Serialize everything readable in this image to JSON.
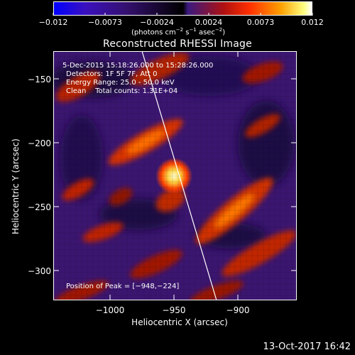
{
  "colorbar": {
    "ticks": [
      "−0.012",
      "−0.0073",
      "−0.0024",
      "0.0024",
      "0.0073",
      "0.012"
    ],
    "units_prefix": "(photons cm",
    "units_exp1": "−2",
    "units_s": " s",
    "units_exp2": "−1",
    "units_asec": " asec",
    "units_exp3": "−2",
    "units_suffix": ")",
    "colors": [
      "#0000ff",
      "#4a00a0",
      "#000000",
      "#5a2090",
      "#ff2000",
      "#ffd000",
      "#ffffff"
    ]
  },
  "plot": {
    "title": "Reconstructed RHESSI Image",
    "x_axis_title": "Heliocentric X (arcsec)",
    "y_axis_title": "Heliocentric Y (arcsec)",
    "x_ticks": [
      "−1000",
      "−950",
      "−900"
    ],
    "y_ticks": [
      "−150",
      "−200",
      "−250",
      "−300"
    ],
    "info": {
      "time_range": "5-Dec-2015 15:18:26.000 to 15:28:26.000",
      "detectors": "Detectors: 1F 5F 7F, Att 0",
      "energy": "Energy Range: 25.0 - 50.0 keV",
      "method": "Clean    Total counts: 1.31E+04",
      "peak": "Position of Peak = [−948,−224]"
    }
  },
  "footer": {
    "date": "13-Oct-2017 16:42"
  }
}
